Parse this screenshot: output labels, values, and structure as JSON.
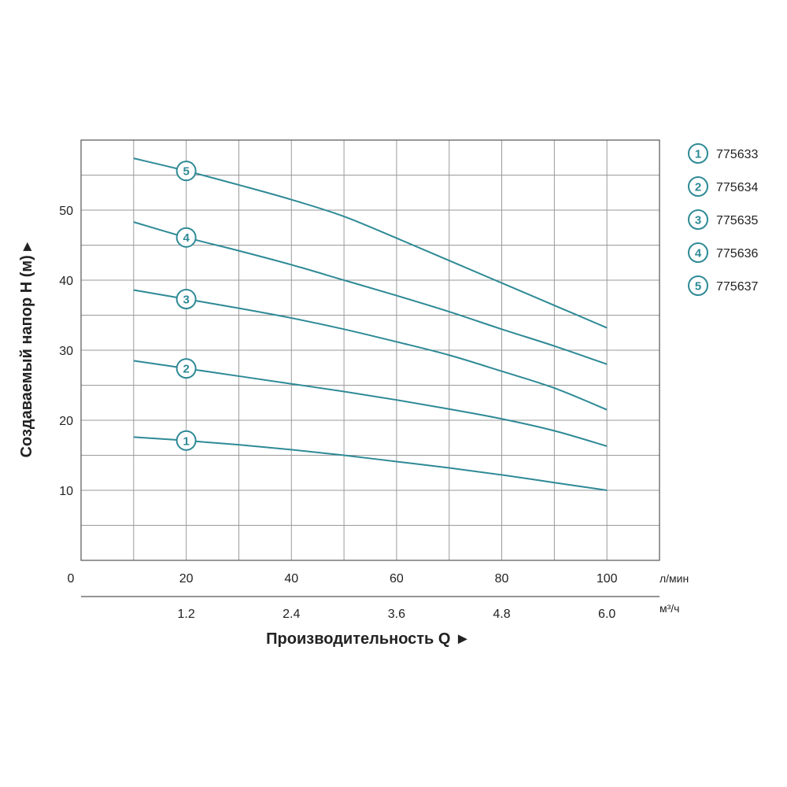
{
  "chart_data": {
    "type": "line",
    "ylabel": "Создаваемый напор H (м) ▸",
    "xlabel": "Производительность Q  ►",
    "x_unit_primary": "л/мин",
    "x_unit_secondary": "м³/ч",
    "xlim": [
      0,
      110
    ],
    "ylim": [
      0,
      60
    ],
    "x_grid_step": 10,
    "y_grid_step": 5,
    "grid": true,
    "x_ticks": [
      0,
      20,
      40,
      60,
      80,
      100
    ],
    "x_tick_labels": [
      "0",
      "20",
      "40",
      "60",
      "80",
      "100"
    ],
    "x2_ticks": [
      20,
      40,
      60,
      80,
      100
    ],
    "x2_tick_labels": [
      "1.2",
      "2.4",
      "3.6",
      "4.8",
      "6.0"
    ],
    "y_ticks": [
      10,
      20,
      30,
      40,
      50
    ],
    "y_tick_labels": [
      "10",
      "20",
      "30",
      "40",
      "50"
    ],
    "line_color": "#2e8a96",
    "legend_position": "right",
    "series": [
      {
        "name": "775633",
        "marker": "1",
        "marker_x": 20,
        "x": [
          10,
          20,
          30,
          40,
          50,
          60,
          70,
          80,
          90,
          100
        ],
        "y": [
          17.6,
          17.1,
          16.5,
          15.8,
          15.0,
          14.1,
          13.2,
          12.2,
          11.1,
          10.0
        ]
      },
      {
        "name": "775634",
        "marker": "2",
        "marker_x": 20,
        "x": [
          10,
          20,
          30,
          40,
          50,
          60,
          70,
          80,
          90,
          100
        ],
        "y": [
          28.5,
          27.4,
          26.3,
          25.2,
          24.1,
          22.9,
          21.6,
          20.2,
          18.5,
          16.3
        ]
      },
      {
        "name": "775635",
        "marker": "3",
        "marker_x": 20,
        "x": [
          10,
          20,
          30,
          40,
          50,
          60,
          70,
          80,
          90,
          100
        ],
        "y": [
          38.6,
          37.3,
          36.0,
          34.6,
          33.0,
          31.2,
          29.3,
          27.0,
          24.6,
          21.5
        ]
      },
      {
        "name": "775636",
        "marker": "4",
        "marker_x": 20,
        "x": [
          10,
          20,
          30,
          40,
          50,
          60,
          70,
          80,
          90,
          100
        ],
        "y": [
          48.3,
          46.1,
          44.2,
          42.2,
          40.0,
          37.8,
          35.5,
          33.0,
          30.6,
          28.0
        ]
      },
      {
        "name": "775637",
        "marker": "5",
        "marker_x": 20,
        "x": [
          10,
          20,
          30,
          40,
          50,
          60,
          70,
          80,
          90,
          100
        ],
        "y": [
          57.4,
          55.6,
          53.6,
          51.5,
          49.1,
          46.0,
          42.8,
          39.6,
          36.4,
          33.2
        ]
      }
    ]
  }
}
